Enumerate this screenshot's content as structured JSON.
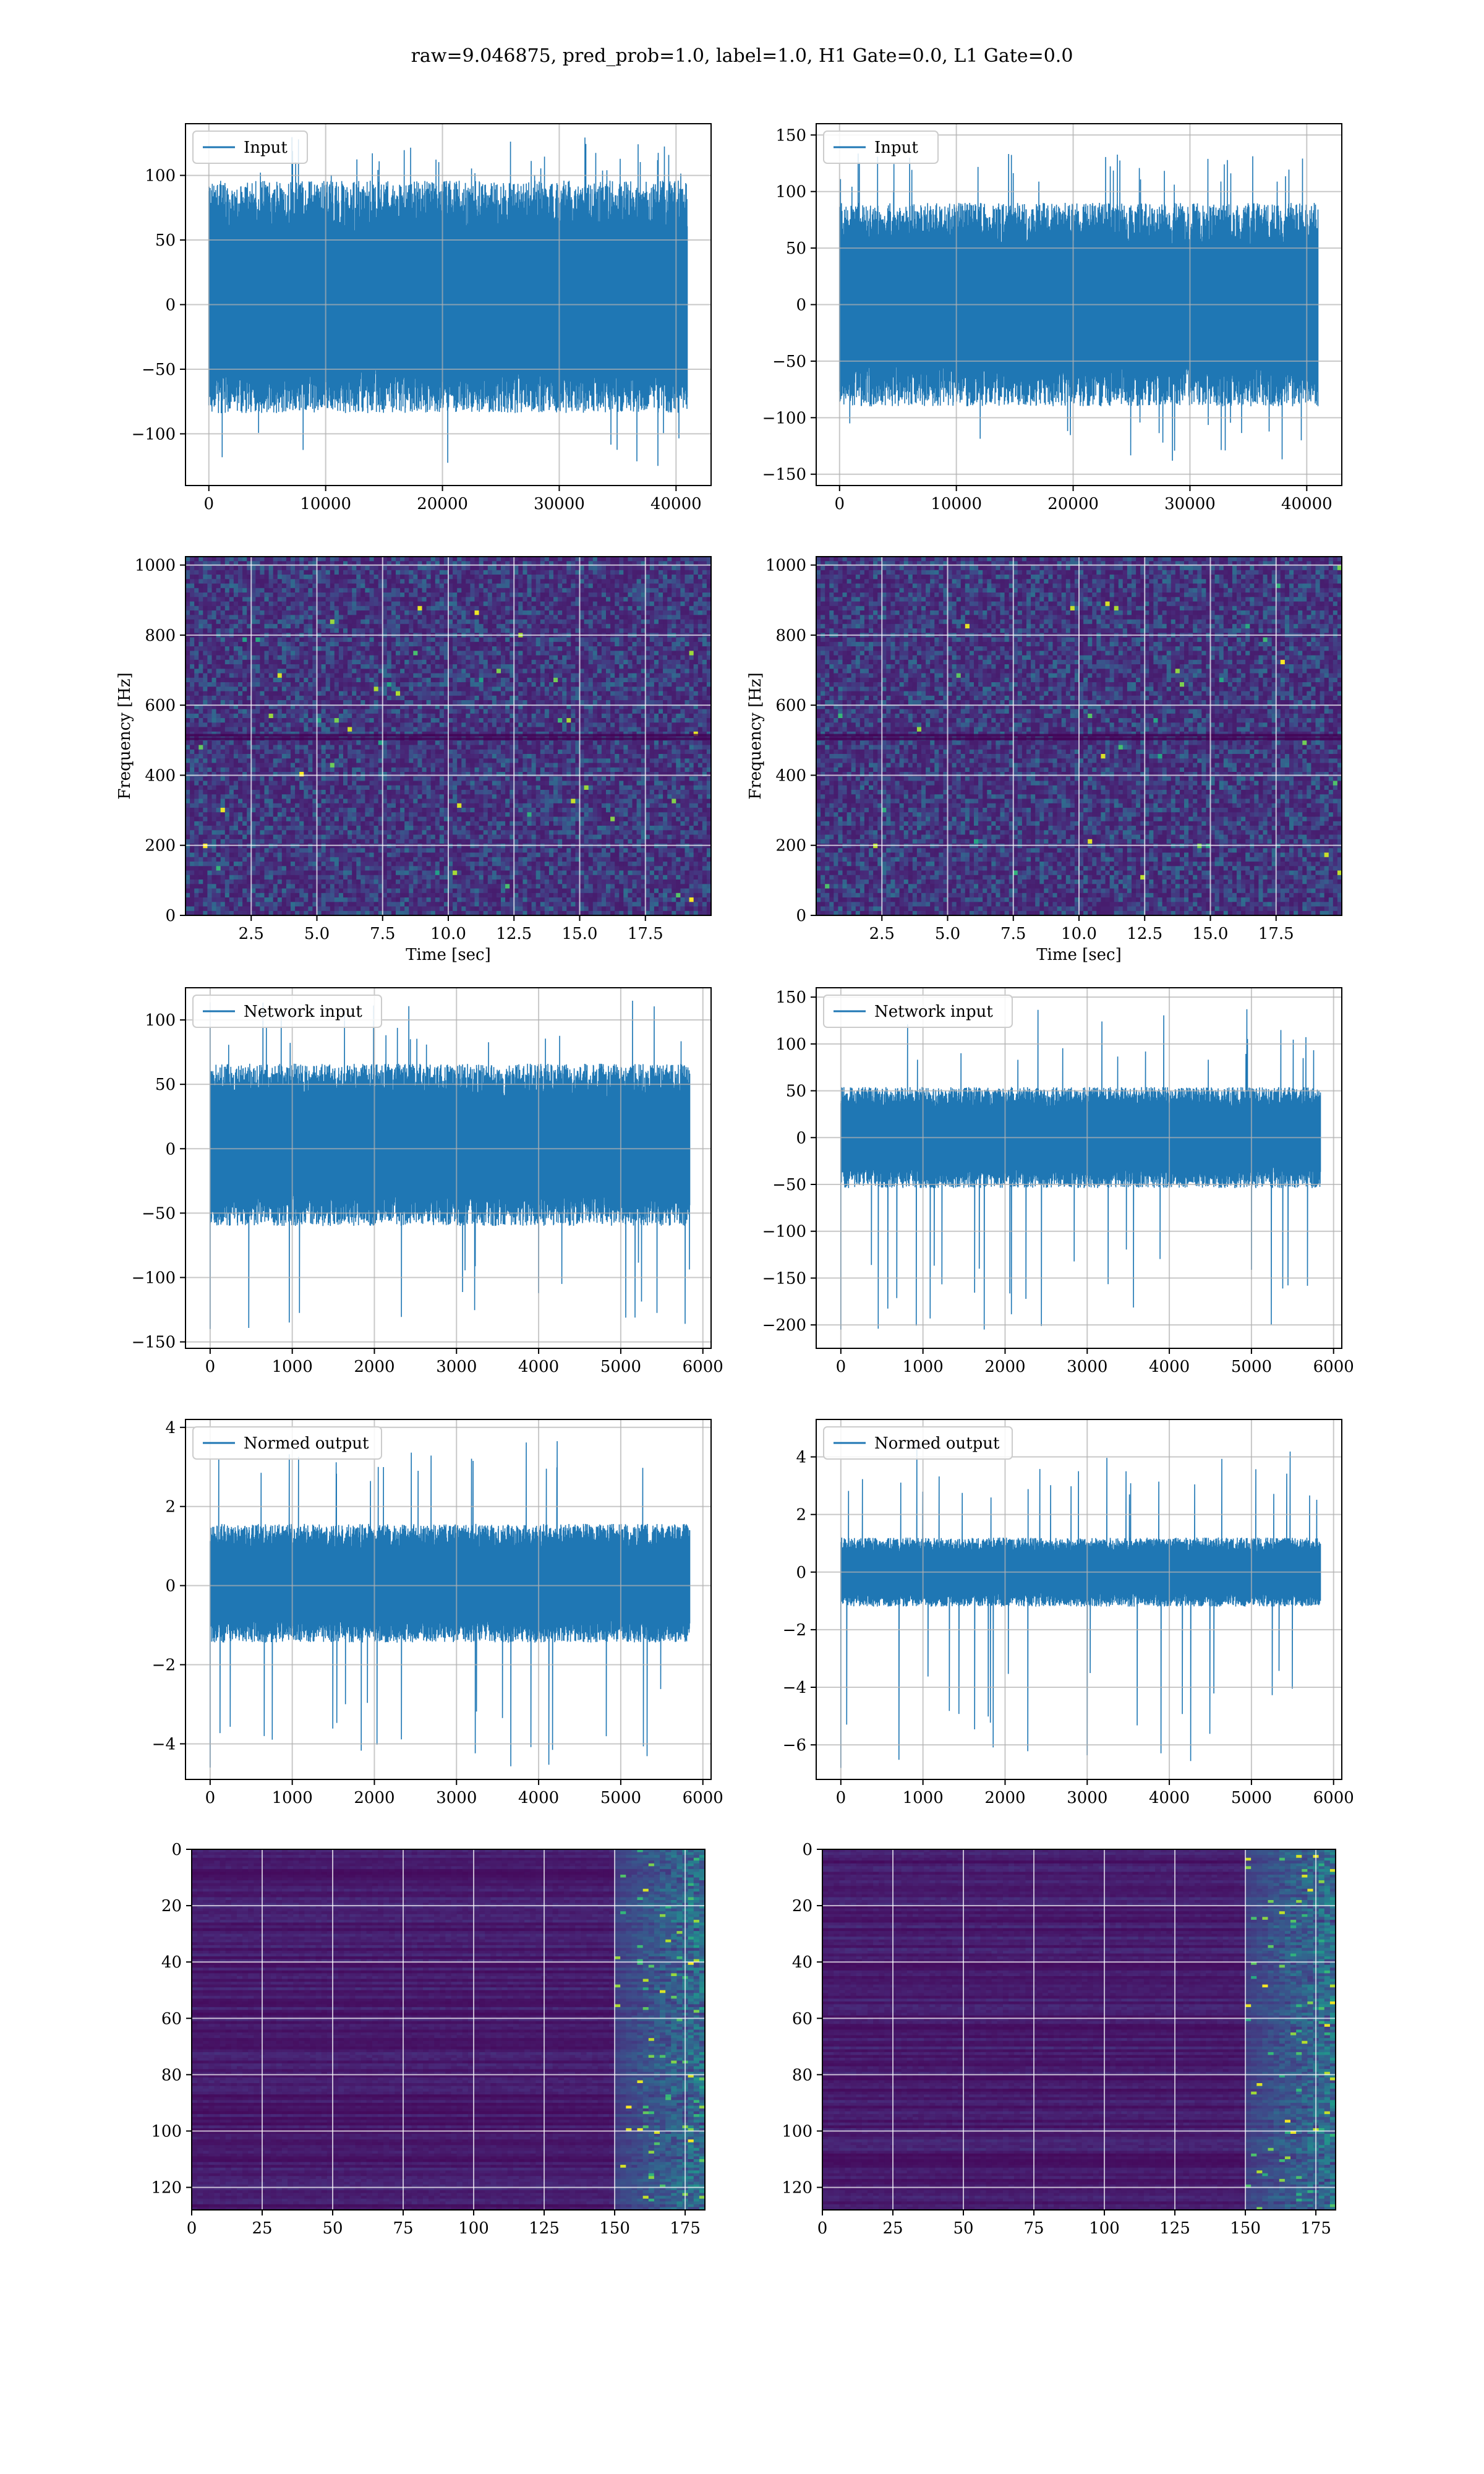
{
  "figure": {
    "title": "raw=9.046875, pred_prob=1.0, label=1.0, H1 Gate=0.0, L1 Gate=0.0"
  },
  "colors": {
    "line": "#1f77b4",
    "grid": "#b0b0b0",
    "spine": "#000000",
    "viridis_dark": "#440154",
    "viridis_mid": "#21918c",
    "viridis_bright": "#fde725"
  },
  "chart_data": [
    {
      "id": "input-h1",
      "type": "line",
      "title": "",
      "xlabel": "",
      "ylabel": "",
      "series": [
        {
          "name": "Input",
          "length": 40960,
          "envelope_upper": 80,
          "envelope_lower": -70,
          "peak_max": 130,
          "peak_min": -125
        }
      ],
      "xlim": [
        -2000,
        43000
      ],
      "ylim": [
        -140,
        140
      ],
      "xticks": [
        0,
        10000,
        20000,
        30000,
        40000
      ],
      "xtick_labels": [
        "0",
        "10000",
        "20000",
        "30000",
        "40000"
      ],
      "yticks": [
        -100,
        -50,
        0,
        50,
        100
      ],
      "ytick_labels": [
        "−100",
        "−50",
        "0",
        "50",
        "100"
      ],
      "legend": "top-left",
      "grid": true
    },
    {
      "id": "input-l1",
      "type": "line",
      "title": "",
      "xlabel": "",
      "ylabel": "",
      "series": [
        {
          "name": "Input",
          "length": 40960,
          "envelope_upper": 75,
          "envelope_lower": -75,
          "peak_max": 135,
          "peak_min": -140
        }
      ],
      "xlim": [
        -2000,
        43000
      ],
      "ylim": [
        -160,
        160
      ],
      "xticks": [
        0,
        10000,
        20000,
        30000,
        40000
      ],
      "xtick_labels": [
        "0",
        "10000",
        "20000",
        "30000",
        "40000"
      ],
      "yticks": [
        -150,
        -100,
        -50,
        0,
        50,
        100,
        150
      ],
      "ytick_labels": [
        "−150",
        "−100",
        "−50",
        "0",
        "50",
        "100",
        "150"
      ],
      "legend": "top-left",
      "grid": true
    },
    {
      "id": "spec-h1",
      "type": "heatmap",
      "title": "",
      "xlabel": "Time [sec]",
      "ylabel": "Frequency [Hz]",
      "xlim": [
        0,
        20
      ],
      "ylim": [
        0,
        1024
      ],
      "xticks": [
        2.5,
        5,
        7.5,
        10,
        12.5,
        15,
        17.5
      ],
      "xtick_labels": [
        "2.5",
        "5.0",
        "7.5",
        "10.0",
        "12.5",
        "15.0",
        "17.5"
      ],
      "yticks": [
        0,
        200,
        400,
        600,
        800,
        1000
      ],
      "ytick_labels": [
        "0",
        "200",
        "400",
        "600",
        "800",
        "1000"
      ],
      "colormap": "viridis",
      "grid": true
    },
    {
      "id": "spec-l1",
      "type": "heatmap",
      "title": "",
      "xlabel": "Time [sec]",
      "ylabel": "Frequency [Hz]",
      "xlim": [
        0,
        20
      ],
      "ylim": [
        0,
        1024
      ],
      "xticks": [
        2.5,
        5,
        7.5,
        10,
        12.5,
        15,
        17.5
      ],
      "xtick_labels": [
        "2.5",
        "5.0",
        "7.5",
        "10.0",
        "12.5",
        "15.0",
        "17.5"
      ],
      "yticks": [
        0,
        200,
        400,
        600,
        800,
        1000
      ],
      "ytick_labels": [
        "0",
        "200",
        "400",
        "600",
        "800",
        "1000"
      ],
      "colormap": "viridis",
      "grid": true
    },
    {
      "id": "netin-h1",
      "type": "line",
      "title": "",
      "xlabel": "",
      "ylabel": "",
      "series": [
        {
          "name": "Network input",
          "length": 5840,
          "envelope_upper": 55,
          "envelope_lower": -50,
          "peak_max": 115,
          "peak_min": -140
        }
      ],
      "xlim": [
        -300,
        6100
      ],
      "ylim": [
        -155,
        125
      ],
      "xticks": [
        0,
        1000,
        2000,
        3000,
        4000,
        5000,
        6000
      ],
      "xtick_labels": [
        "0",
        "1000",
        "2000",
        "3000",
        "4000",
        "5000",
        "6000"
      ],
      "yticks": [
        -150,
        -100,
        -50,
        0,
        50,
        100
      ],
      "ytick_labels": [
        "−150",
        "−100",
        "−50",
        "0",
        "50",
        "100"
      ],
      "legend": "top-left",
      "grid": true
    },
    {
      "id": "netin-l1",
      "type": "line",
      "title": "",
      "xlabel": "",
      "ylabel": "",
      "series": [
        {
          "name": "Network input",
          "length": 5840,
          "envelope_upper": 45,
          "envelope_lower": -45,
          "peak_max": 140,
          "peak_min": -205
        }
      ],
      "xlim": [
        -300,
        6100
      ],
      "ylim": [
        -225,
        160
      ],
      "xticks": [
        0,
        1000,
        2000,
        3000,
        4000,
        5000,
        6000
      ],
      "xtick_labels": [
        "0",
        "1000",
        "2000",
        "3000",
        "4000",
        "5000",
        "6000"
      ],
      "yticks": [
        -200,
        -150,
        -100,
        -50,
        0,
        50,
        100,
        150
      ],
      "ytick_labels": [
        "−200",
        "−150",
        "−100",
        "−50",
        "0",
        "50",
        "100",
        "150"
      ],
      "legend": "top-left",
      "grid": true
    },
    {
      "id": "normed-h1",
      "type": "line",
      "title": "",
      "xlabel": "",
      "ylabel": "",
      "series": [
        {
          "name": "Normed output",
          "length": 5840,
          "envelope_upper": 1.3,
          "envelope_lower": -1.2,
          "peak_max": 3.8,
          "peak_min": -4.6
        }
      ],
      "xlim": [
        -300,
        6100
      ],
      "ylim": [
        -4.9,
        4.2
      ],
      "xticks": [
        0,
        1000,
        2000,
        3000,
        4000,
        5000,
        6000
      ],
      "xtick_labels": [
        "0",
        "1000",
        "2000",
        "3000",
        "4000",
        "5000",
        "6000"
      ],
      "yticks": [
        -4,
        -2,
        0,
        2,
        4
      ],
      "ytick_labels": [
        "−4",
        "−2",
        "0",
        "2",
        "4"
      ],
      "legend": "top-left",
      "grid": true
    },
    {
      "id": "normed-l1",
      "type": "line",
      "title": "",
      "xlabel": "",
      "ylabel": "",
      "series": [
        {
          "name": "Normed output",
          "length": 5840,
          "envelope_upper": 1.0,
          "envelope_lower": -1.0,
          "peak_max": 4.5,
          "peak_min": -6.8
        }
      ],
      "xlim": [
        -300,
        6100
      ],
      "ylim": [
        -7.2,
        5.3
      ],
      "xticks": [
        0,
        1000,
        2000,
        3000,
        4000,
        5000,
        6000
      ],
      "xtick_labels": [
        "0",
        "1000",
        "2000",
        "3000",
        "4000",
        "5000",
        "6000"
      ],
      "yticks": [
        -6,
        -4,
        -2,
        0,
        2,
        4
      ],
      "ytick_labels": [
        "−6",
        "−4",
        "−2",
        "0",
        "2",
        "4"
      ],
      "legend": "top-left",
      "grid": true
    },
    {
      "id": "feat-h1",
      "type": "heatmap",
      "title": "",
      "xlabel": "",
      "ylabel": "",
      "rows": 128,
      "cols": 182,
      "active_cols_from": 150,
      "xlim": [
        0,
        182
      ],
      "ylim": [
        128,
        0
      ],
      "xticks": [
        0,
        25,
        50,
        75,
        100,
        125,
        150,
        175
      ],
      "xtick_labels": [
        "0",
        "25",
        "50",
        "75",
        "100",
        "125",
        "150",
        "175"
      ],
      "yticks": [
        0,
        20,
        40,
        60,
        80,
        100,
        120
      ],
      "ytick_labels": [
        "0",
        "20",
        "40",
        "60",
        "80",
        "100",
        "120"
      ],
      "colormap": "viridis",
      "grid": true
    },
    {
      "id": "feat-l1",
      "type": "heatmap",
      "title": "",
      "xlabel": "",
      "ylabel": "",
      "rows": 128,
      "cols": 182,
      "active_cols_from": 150,
      "xlim": [
        0,
        182
      ],
      "ylim": [
        128,
        0
      ],
      "xticks": [
        0,
        25,
        50,
        75,
        100,
        125,
        150,
        175
      ],
      "xtick_labels": [
        "0",
        "25",
        "50",
        "75",
        "100",
        "125",
        "150",
        "175"
      ],
      "yticks": [
        0,
        20,
        40,
        60,
        80,
        100,
        120
      ],
      "ytick_labels": [
        "0",
        "20",
        "40",
        "60",
        "80",
        "100",
        "120"
      ],
      "colormap": "viridis",
      "grid": true
    }
  ]
}
